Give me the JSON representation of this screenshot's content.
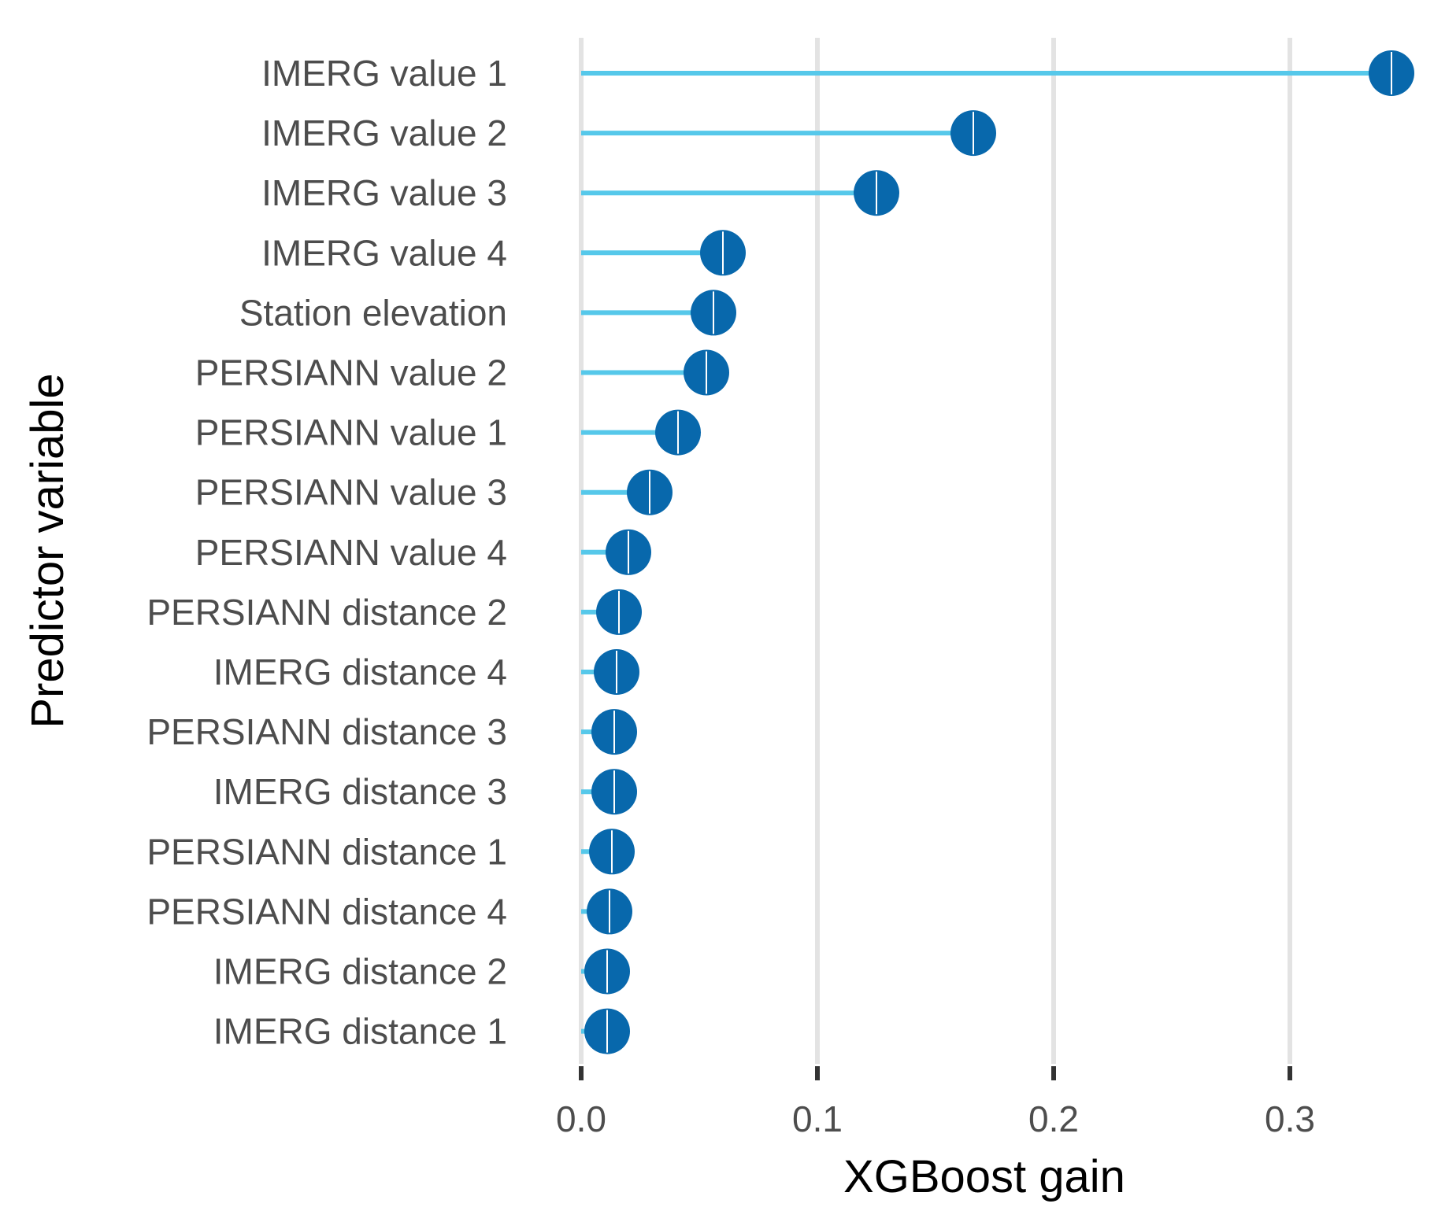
{
  "chart_data": {
    "type": "lollipop",
    "title": "",
    "xlabel": "XGBoost gain",
    "ylabel": "Predictor variable",
    "xlim": [
      0.0,
      0.343
    ],
    "xticks": [
      0.0,
      0.1,
      0.2,
      0.3
    ],
    "xtick_labels": [
      "0.0",
      "0.1",
      "0.2",
      "0.3"
    ],
    "grid": "vertical major",
    "categories": [
      "IMERG value 1",
      "IMERG value 2",
      "IMERG value 3",
      "IMERG value 4",
      "Station elevation",
      "PERSIANN value 2",
      "PERSIANN value 1",
      "PERSIANN value 3",
      "PERSIANN value 4",
      "PERSIANN distance 2",
      "IMERG distance 4",
      "PERSIANN distance 3",
      "IMERG distance 3",
      "PERSIANN distance 1",
      "PERSIANN distance 4",
      "IMERG distance 2",
      "IMERG distance 1"
    ],
    "values": [
      0.343,
      0.166,
      0.125,
      0.06,
      0.056,
      0.053,
      0.041,
      0.029,
      0.02,
      0.016,
      0.015,
      0.014,
      0.014,
      0.013,
      0.012,
      0.011,
      0.011
    ],
    "colors": {
      "stem": "#56c8ea",
      "point": "#0868ac",
      "point_divider": "#ffffff",
      "grid": "#e3e3e3",
      "tick": "#333333"
    }
  }
}
